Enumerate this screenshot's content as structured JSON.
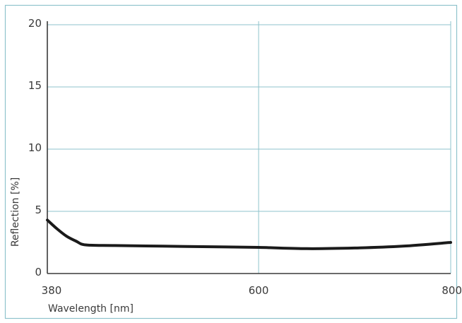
{
  "chart_data": {
    "type": "line",
    "title": "",
    "xlabel": "Wavelength [nm]",
    "ylabel": "Reflection [%]",
    "xlim": [
      380,
      800
    ],
    "ylim": [
      0,
      20
    ],
    "x_ticks": [
      380,
      600,
      800
    ],
    "y_ticks": [
      0,
      5,
      10,
      15,
      20
    ],
    "grid": true,
    "series": [
      {
        "name": "",
        "color": "#1a1a1a",
        "x": [
          380,
          390,
          400,
          410,
          420,
          450,
          500,
          550,
          600,
          650,
          700,
          750,
          800
        ],
        "y": [
          4.3,
          3.6,
          3.0,
          2.6,
          2.3,
          2.25,
          2.2,
          2.15,
          2.1,
          2.0,
          2.05,
          2.2,
          2.5
        ]
      }
    ],
    "colors": {
      "frame": "#8fc3cc",
      "grid": "#8fc3cc",
      "axis": "#3a3a3a",
      "line": "#1a1a1a"
    }
  }
}
